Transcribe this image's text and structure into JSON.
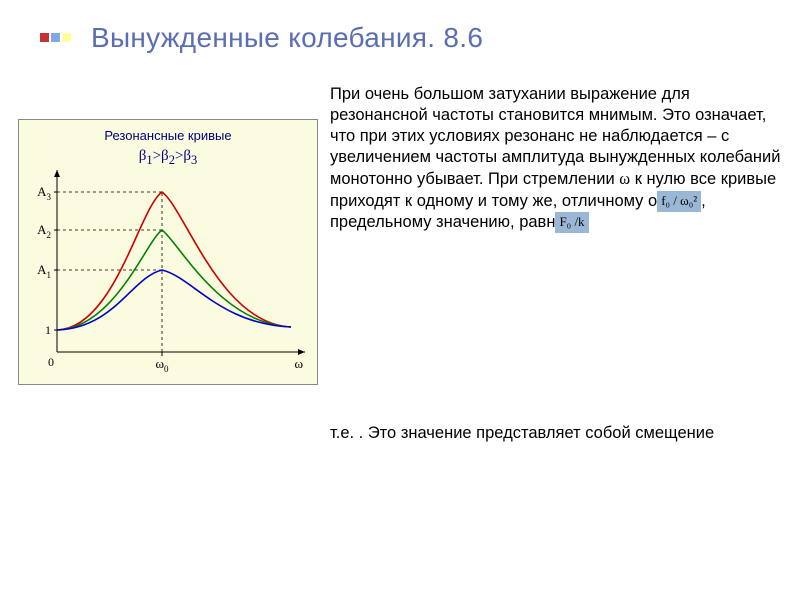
{
  "title": "Вынужденные колебания. 8.6",
  "bullets": {
    "color1": "#c83232",
    "color2": "#7fa8e6",
    "color3": "#ffff99"
  },
  "chart": {
    "title_text": "Резонансные кривые",
    "title_color": "#000080",
    "sub_html": "β<sub>1</sub>>β<sub>2</sub>>β<sub>3</sub>",
    "background": "#fbfbe0",
    "axis_origin_x": 38,
    "axis_origin_y": 232,
    "axis_xmax": 286,
    "axis_ymax": 50,
    "axis_color": "#000000",
    "grid_color": "#000000",
    "x_label_omega0": "ω",
    "x_label_omega0_sub": "0",
    "x_label_omega": "ω",
    "baseline_y": 210,
    "baseline_start_label": "1",
    "omega0_x": 143,
    "y_ticks": [
      {
        "label": "A",
        "sub": "1",
        "y": 150
      },
      {
        "label": "A",
        "sub": "2",
        "y": 110
      },
      {
        "label": "A",
        "sub": "3",
        "y": 72
      }
    ],
    "curves": [
      {
        "color": "#cc0000",
        "peak_y": 72,
        "spread": 42,
        "width": 1.6
      },
      {
        "color": "#008000",
        "peak_y": 110,
        "spread": 30,
        "width": 1.6
      },
      {
        "color": "#0000cc",
        "peak_y": 150,
        "spread": 55,
        "width": 1.6
      }
    ],
    "label_font": "italic 13px 'Times New Roman', serif"
  },
  "para1": "При очень большом затухании выражение для резонансной частоты становится мнимым. Это означает, что при этих условиях резонанс не наблюдается – с увеличением частоты амплитуда вынужденных колебаний монотонно убывает. При стремлении ",
  "para1_omega": "ω",
  "para1_cont": " к нулю все кривые приходят к одному и тому же, отличному о",
  "para1_tail": ", предельному значению, равн",
  "eq1": "f₀ / ω₀²",
  "eq2": "F₀ /k",
  "footer_pre": " т.е.          . Это значение представляет собой смещение"
}
